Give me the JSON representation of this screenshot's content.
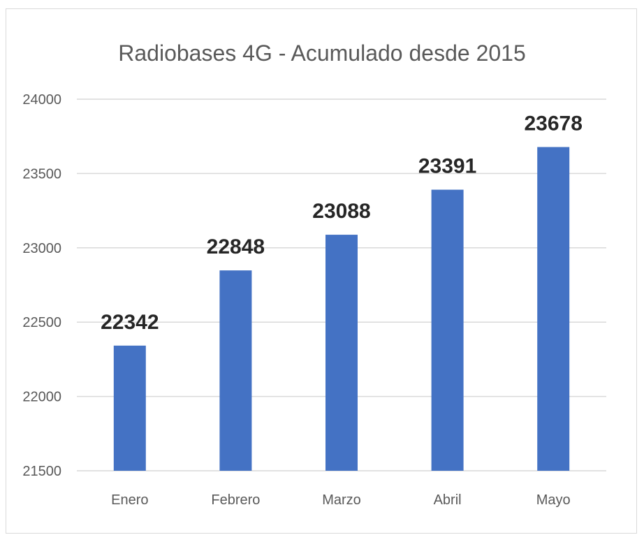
{
  "chart_data": {
    "type": "bar",
    "title": "Radiobases 4G - Acumulado desde 2015",
    "xlabel": "",
    "ylabel": "",
    "categories": [
      "Enero",
      "Febrero",
      "Marzo",
      "Abril",
      "Mayo"
    ],
    "values": [
      22342,
      22848,
      23088,
      23391,
      23678
    ],
    "data_labels": [
      "22342",
      "22848",
      "23088",
      "23391",
      "23678"
    ],
    "yticks": [
      "21500",
      "22000",
      "22500",
      "23000",
      "23500",
      "24000"
    ],
    "ylim": [
      21500,
      24000
    ],
    "grid": true,
    "legend": "none",
    "colors": {
      "bar": "#4472C4",
      "grid": "#D9D9D9",
      "text": "#595959",
      "label": "#262626"
    }
  }
}
